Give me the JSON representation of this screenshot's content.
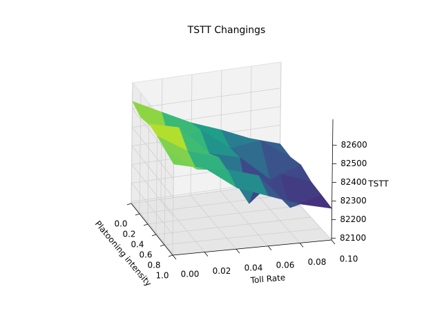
{
  "chart_data": {
    "type": "surface3d",
    "title": "TSTT Changings",
    "xlabel": "Toll Rate",
    "ylabel": "Platooning intensity",
    "zlabel": "TSTT",
    "x": [
      0,
      0.02,
      0.04,
      0.06,
      0.08,
      0.1
    ],
    "y": [
      0,
      0.2,
      0.4,
      0.6,
      0.8,
      1.0
    ],
    "z": [
      [
        82640,
        82560,
        82480,
        82420,
        82350,
        82300
      ],
      [
        82610,
        82450,
        82500,
        82380,
        82400,
        82290
      ],
      [
        82630,
        82590,
        82430,
        82390,
        82250,
        82310
      ],
      [
        82620,
        82520,
        82470,
        82200,
        82340,
        82280
      ],
      [
        82600,
        82480,
        82460,
        82410,
        82220,
        82270
      ],
      [
        82580,
        82540,
        82420,
        82360,
        82300,
        82260
      ]
    ],
    "colormap": "viridis",
    "xlim": [
      0,
      0.1
    ],
    "ylim": [
      0,
      1.0
    ],
    "zlim": [
      82090,
      82740
    ],
    "xticks": [
      {
        "value": 0,
        "label": "0.00"
      },
      0.02,
      0.04,
      0.06,
      0.08,
      {
        "value": 0.1,
        "label": "0.10"
      }
    ],
    "yticks": [
      {
        "value": 0,
        "label": "0.0"
      },
      0.2,
      0.4,
      0.6,
      0.8,
      {
        "value": 1.0,
        "label": "1.0"
      }
    ],
    "zticks": [
      82100,
      82200,
      82300,
      82400,
      82500,
      82600
    ],
    "grid": true
  }
}
